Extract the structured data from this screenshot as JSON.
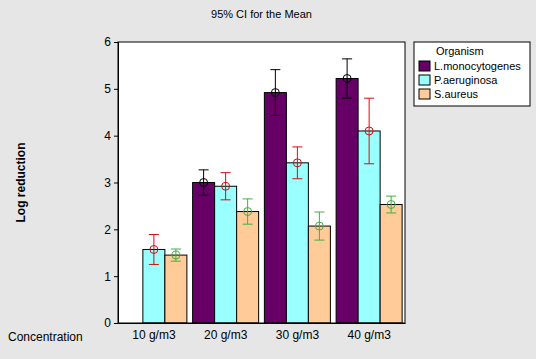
{
  "chart_data": {
    "type": "bar",
    "title": "95% CI for the Mean",
    "x_label": "Concentration",
    "y_label": "Log reduction",
    "categories": [
      "10 g/m3",
      "20 g/m3",
      "30 g/m3",
      "40 g/m3"
    ],
    "series": [
      {
        "name": "L.monocytogenes",
        "color": "#660066",
        "values": [
          null,
          3.0,
          4.92,
          5.22
        ],
        "errors": [
          null,
          0.27,
          0.49,
          0.42
        ]
      },
      {
        "name": "P.aeruginosa",
        "color": "#99ffff",
        "values": [
          1.57,
          2.92,
          3.42,
          4.1
        ],
        "errors": [
          0.32,
          0.29,
          0.34,
          0.7
        ]
      },
      {
        "name": "S.aureus",
        "color": "#ffcc99",
        "values": [
          1.45,
          2.38,
          2.07,
          2.53
        ],
        "errors": [
          0.13,
          0.27,
          0.3,
          0.18
        ]
      }
    ],
    "ylim": [
      0,
      6
    ],
    "yticks": [
      0,
      1,
      2,
      3,
      4,
      5,
      6
    ],
    "grid": false,
    "legend": "right",
    "legend_title": "Organism"
  }
}
